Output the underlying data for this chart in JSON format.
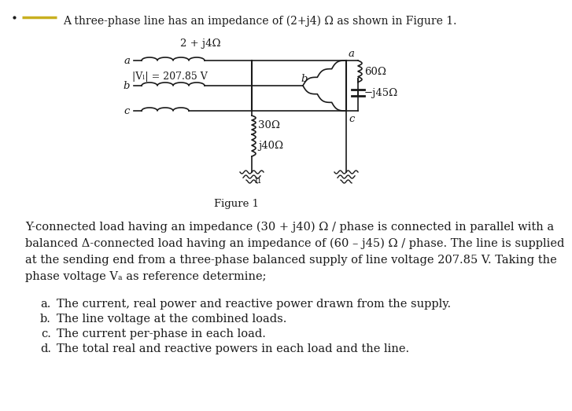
{
  "title_line": "A three-phase line has an impedance of (2+j4) Ω as shown in Figure 1.",
  "figure_label": "Figure 1",
  "circuit_impedance_label": "2 + j4Ω",
  "voltage_label": "|Vₗ| = 207.85 V",
  "node_a_left": "a",
  "node_b_left": "b",
  "node_c_left": "c",
  "node_a_right": "a",
  "node_b_right": "b",
  "node_c_right": "c",
  "node_n": "n",
  "y_load_r": "30Ω",
  "y_load_x": "j40Ω",
  "delta_load_r": "60Ω",
  "delta_load_x": "−j45Ω",
  "paragraph1": "Y-connected load having an impedance (30 + j40) Ω / phase is connected in parallel with a",
  "paragraph2": "balanced Δ-connected load having an impedance of (60 – j45) Ω / phase. The line is supplied",
  "paragraph3": "at the sending end from a three-phase balanced supply of line voltage 207.85 V. Taking the",
  "paragraph4": "phase voltage Vₐ as reference determine;",
  "items": [
    "The current, real power and reactive power drawn from the supply.",
    "The line voltage at the combined loads.",
    "The current per-phase in each load.",
    "The total real and reactive powers in each load and the line."
  ],
  "item_labels": [
    "a.",
    "b.",
    "c.",
    "d."
  ],
  "bg_color": "#ffffff",
  "line_color": "#1a1a1a",
  "yellow_line_color": "#c8b020",
  "text_color": "#1a1a1a",
  "font_size_title": 10.0,
  "font_size_body": 10.5,
  "font_size_circuit": 9.5
}
